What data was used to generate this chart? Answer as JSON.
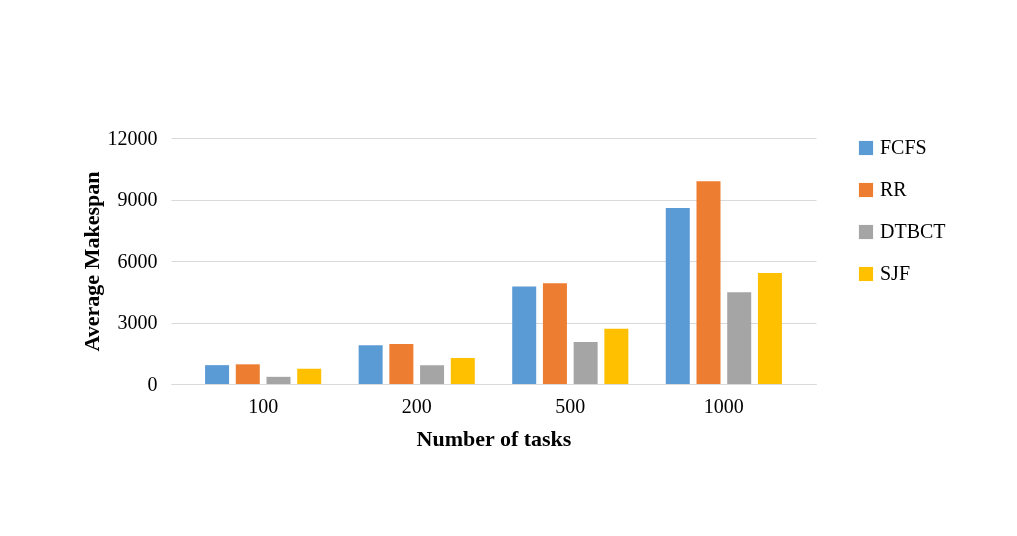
{
  "chart_data": {
    "type": "bar",
    "xlabel": "Number of tasks",
    "ylabel": "Average Makespan",
    "categories": [
      "100",
      "200",
      "500",
      "1000"
    ],
    "series": [
      {
        "name": "FCFS",
        "color": "#5b9bd5",
        "values": [
          920,
          1890,
          4760,
          8590
        ]
      },
      {
        "name": "RR",
        "color": "#ed7d31",
        "values": [
          960,
          1950,
          4920,
          9890
        ]
      },
      {
        "name": "DTBCT",
        "color": "#a5a5a5",
        "values": [
          350,
          920,
          2050,
          4470
        ]
      },
      {
        "name": "SJF",
        "color": "#ffc000",
        "values": [
          740,
          1270,
          2690,
          5420
        ]
      }
    ],
    "ylim": [
      0,
      12000
    ],
    "yticks": [
      0,
      3000,
      6000,
      9000,
      12000
    ],
    "grid": "y",
    "legend": "top right"
  }
}
